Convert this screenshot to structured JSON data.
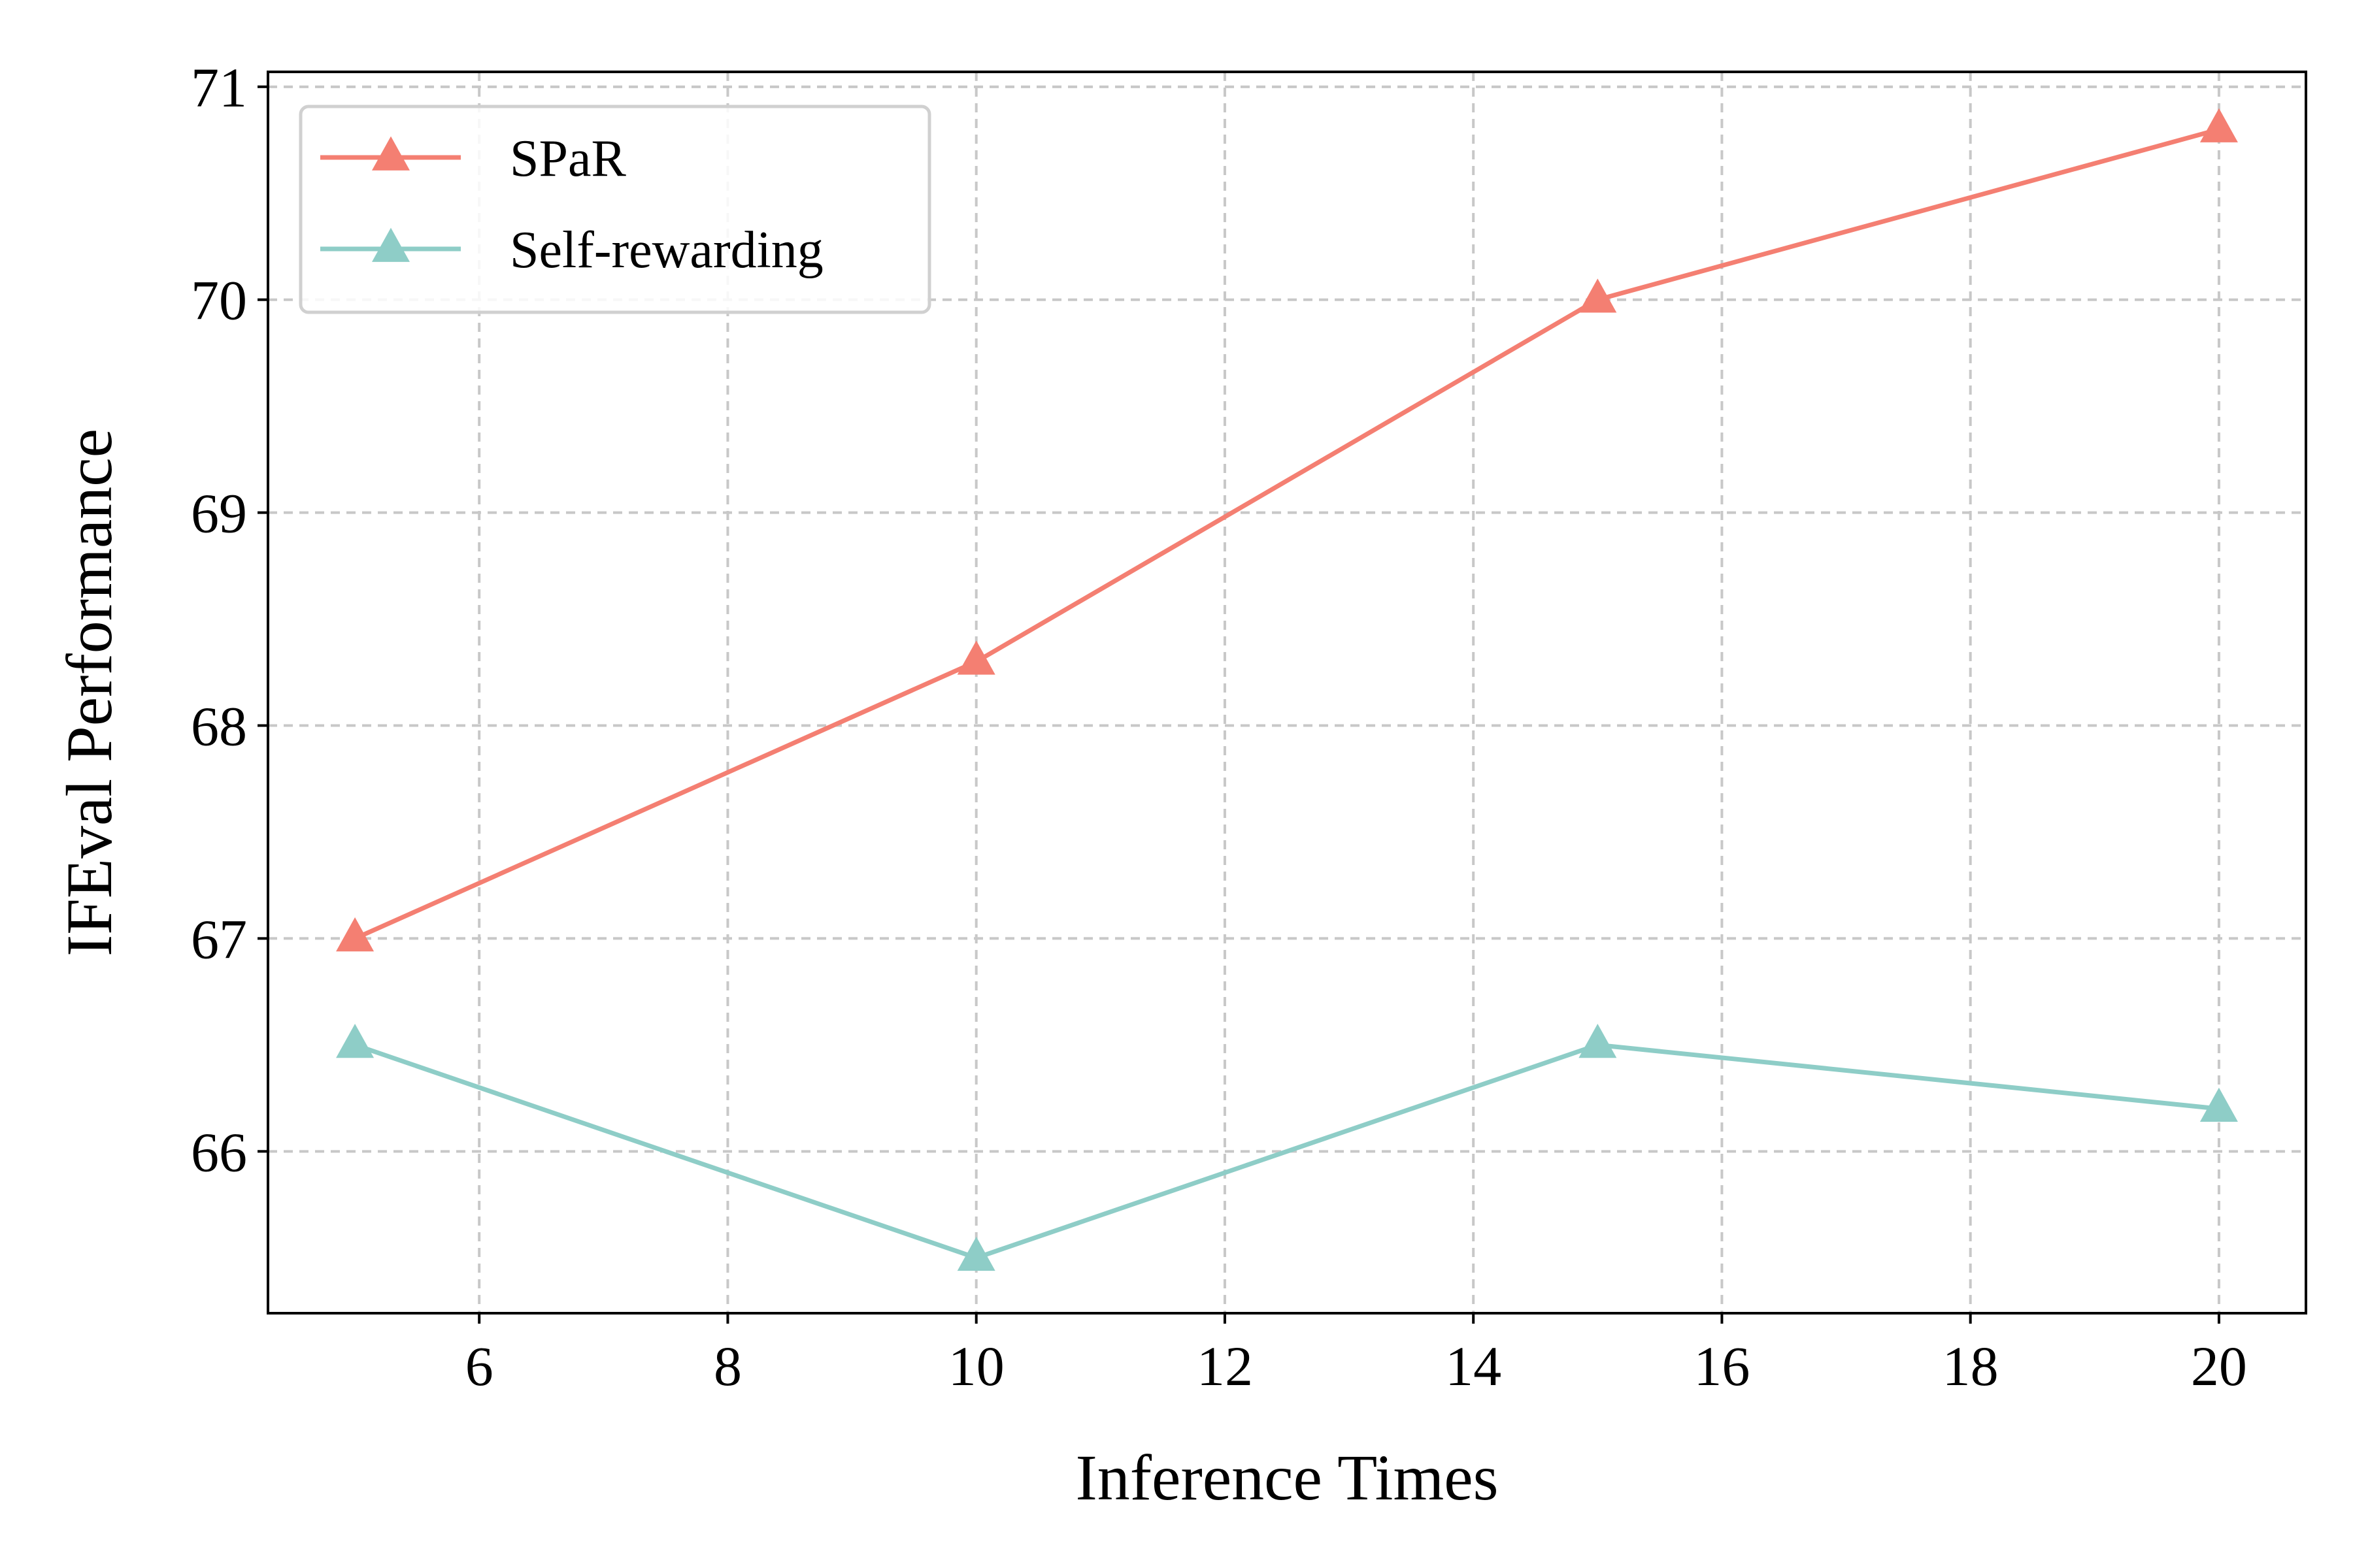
{
  "chart_data": {
    "type": "line",
    "title": "",
    "xlabel": "Inference Times",
    "ylabel": "IFEval Performance",
    "x": [
      5,
      10,
      15,
      20
    ],
    "xlim": [
      4.3,
      20.7
    ],
    "ylim": [
      65.24,
      71.07
    ],
    "xticks": [
      6,
      8,
      10,
      12,
      14,
      16,
      18,
      20
    ],
    "yticks": [
      66,
      67,
      68,
      69,
      70,
      71
    ],
    "grid": true,
    "legend_position": "top-left",
    "series": [
      {
        "name": "SPaR",
        "color": "#f47f72",
        "marker": "triangle",
        "values": [
          67.0,
          68.3,
          70.0,
          70.8
        ]
      },
      {
        "name": "Self-rewarding",
        "color": "#8ecdc7",
        "marker": "triangle",
        "values": [
          66.5,
          65.5,
          66.5,
          66.2
        ]
      }
    ]
  }
}
